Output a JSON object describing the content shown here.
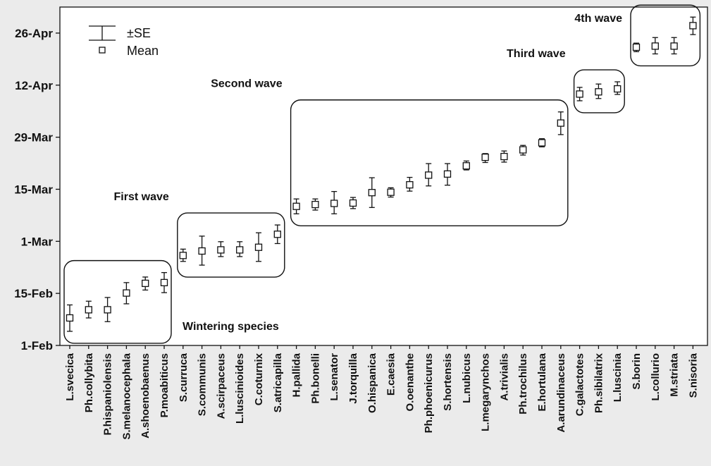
{
  "chart_data": {
    "type": "scatter",
    "y_axis": {
      "tick_labels": [
        "1-Feb",
        "15-Feb",
        "1-Mar",
        "15-Mar",
        "29-Mar",
        "12-Apr",
        "26-Apr"
      ],
      "tick_values": [
        0,
        14,
        28,
        42,
        56,
        70,
        84
      ],
      "ylim": [
        0,
        91
      ],
      "unit": "days from 1-Feb"
    },
    "categories": [
      "L.svecica",
      "Ph.collybita",
      "P.hispaniolensis",
      "S.melanocephala",
      "A.shoenobaenus",
      "P.moabiticus",
      "S.curruca",
      "S.communis",
      "A.scirpaceus",
      "L.luscinioides",
      "C.coturnix",
      "S.atricapilla",
      "H.pallida",
      "Ph.bonelli",
      "L.senator",
      "J.torquilla",
      "O.hispanica",
      "E.caesia",
      "O.oenanthe",
      "Ph.phoenicurus",
      "S.hortensis",
      "L.nubicus",
      "L.megarynchos",
      "A.trivialis",
      "Ph.trochilus",
      "E.hortulana",
      "A.arundinaceus",
      "C.galactotes",
      "Ph.sibilatrix",
      "L.luscinia",
      "S.borin",
      "L.collurio",
      "M.striata",
      "S.nisoria"
    ],
    "series": [
      {
        "name": "Mean",
        "values": [
          7.4,
          9.6,
          9.6,
          14.1,
          16.7,
          16.9,
          24.2,
          25.4,
          25.7,
          25.7,
          26.4,
          29.9,
          37.4,
          37.9,
          38.2,
          38.3,
          41.1,
          41.2,
          43.2,
          45.8,
          46.1,
          48.3,
          50.6,
          50.8,
          52.6,
          54.5,
          59.8,
          67.6,
          68.2,
          69.0,
          80.2,
          80.5,
          80.5,
          86.0
        ],
        "se_upper": [
          10.9,
          11.9,
          12.9,
          16.9,
          18.4,
          19.6,
          25.9,
          29.4,
          27.9,
          27.9,
          30.3,
          32.4,
          39.4,
          39.4,
          41.4,
          39.8,
          45.1,
          42.4,
          45.2,
          48.9,
          48.9,
          49.6,
          51.6,
          52.3,
          53.8,
          55.6,
          62.8,
          69.4,
          70.3,
          70.9,
          81.3,
          82.8,
          82.8,
          88.3
        ],
        "se_lower": [
          3.8,
          7.4,
          6.4,
          11.2,
          14.9,
          14.2,
          22.6,
          21.6,
          23.9,
          23.9,
          22.6,
          27.4,
          35.4,
          36.4,
          35.4,
          36.8,
          37.1,
          39.9,
          41.5,
          42.9,
          43.1,
          47.2,
          49.2,
          49.3,
          51.2,
          53.4,
          56.7,
          65.8,
          66.4,
          67.5,
          79.0,
          78.4,
          78.4,
          83.6
        ]
      }
    ],
    "groups": [
      {
        "label": "Wintering species",
        "from": 0,
        "to": 5
      },
      {
        "label": "First wave",
        "from": 6,
        "to": 11
      },
      {
        "label": "Second wave",
        "from": 12,
        "to": 26
      },
      {
        "label": "Third wave",
        "from": 27,
        "to": 29
      },
      {
        "label": "4th wave",
        "from": 30,
        "to": 33
      }
    ],
    "legend": {
      "placement": "top-left",
      "entries": [
        "±SE",
        "Mean"
      ]
    },
    "grid": false,
    "title": "",
    "xlabel": "",
    "ylabel": ""
  }
}
